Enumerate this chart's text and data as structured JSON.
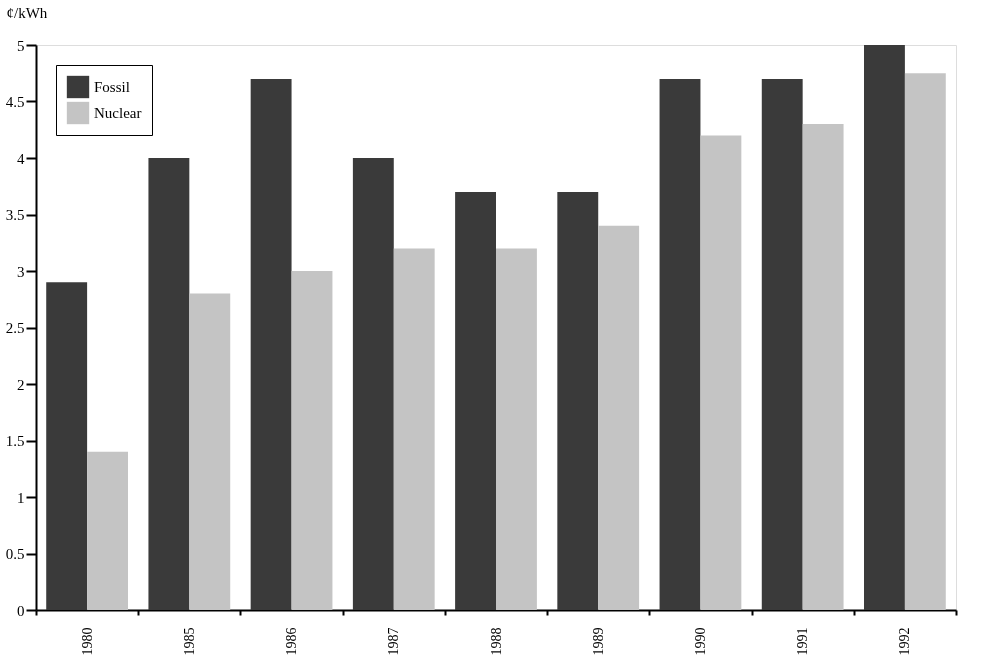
{
  "chart_data": {
    "type": "bar",
    "ylabel": "¢/kWh",
    "categories": [
      "1980",
      "1985",
      "1986",
      "1987",
      "1988",
      "1989",
      "1990",
      "1991",
      "1992"
    ],
    "series": [
      {
        "name": "Fossil",
        "color": "#3a3a3a",
        "values": [
          2.9,
          4.0,
          4.7,
          4.0,
          3.7,
          3.7,
          4.7,
          4.7,
          5.0
        ]
      },
      {
        "name": "Nuclear",
        "color": "#c4c4c4",
        "values": [
          1.4,
          2.8,
          3.0,
          3.2,
          3.2,
          3.4,
          4.2,
          4.3,
          4.75
        ]
      }
    ],
    "ylim": [
      0,
      5
    ],
    "yticks": [
      0,
      0.5,
      1,
      1.5,
      2,
      2.5,
      3,
      3.5,
      4,
      4.5,
      5
    ],
    "grid": false,
    "legend": "top left"
  }
}
